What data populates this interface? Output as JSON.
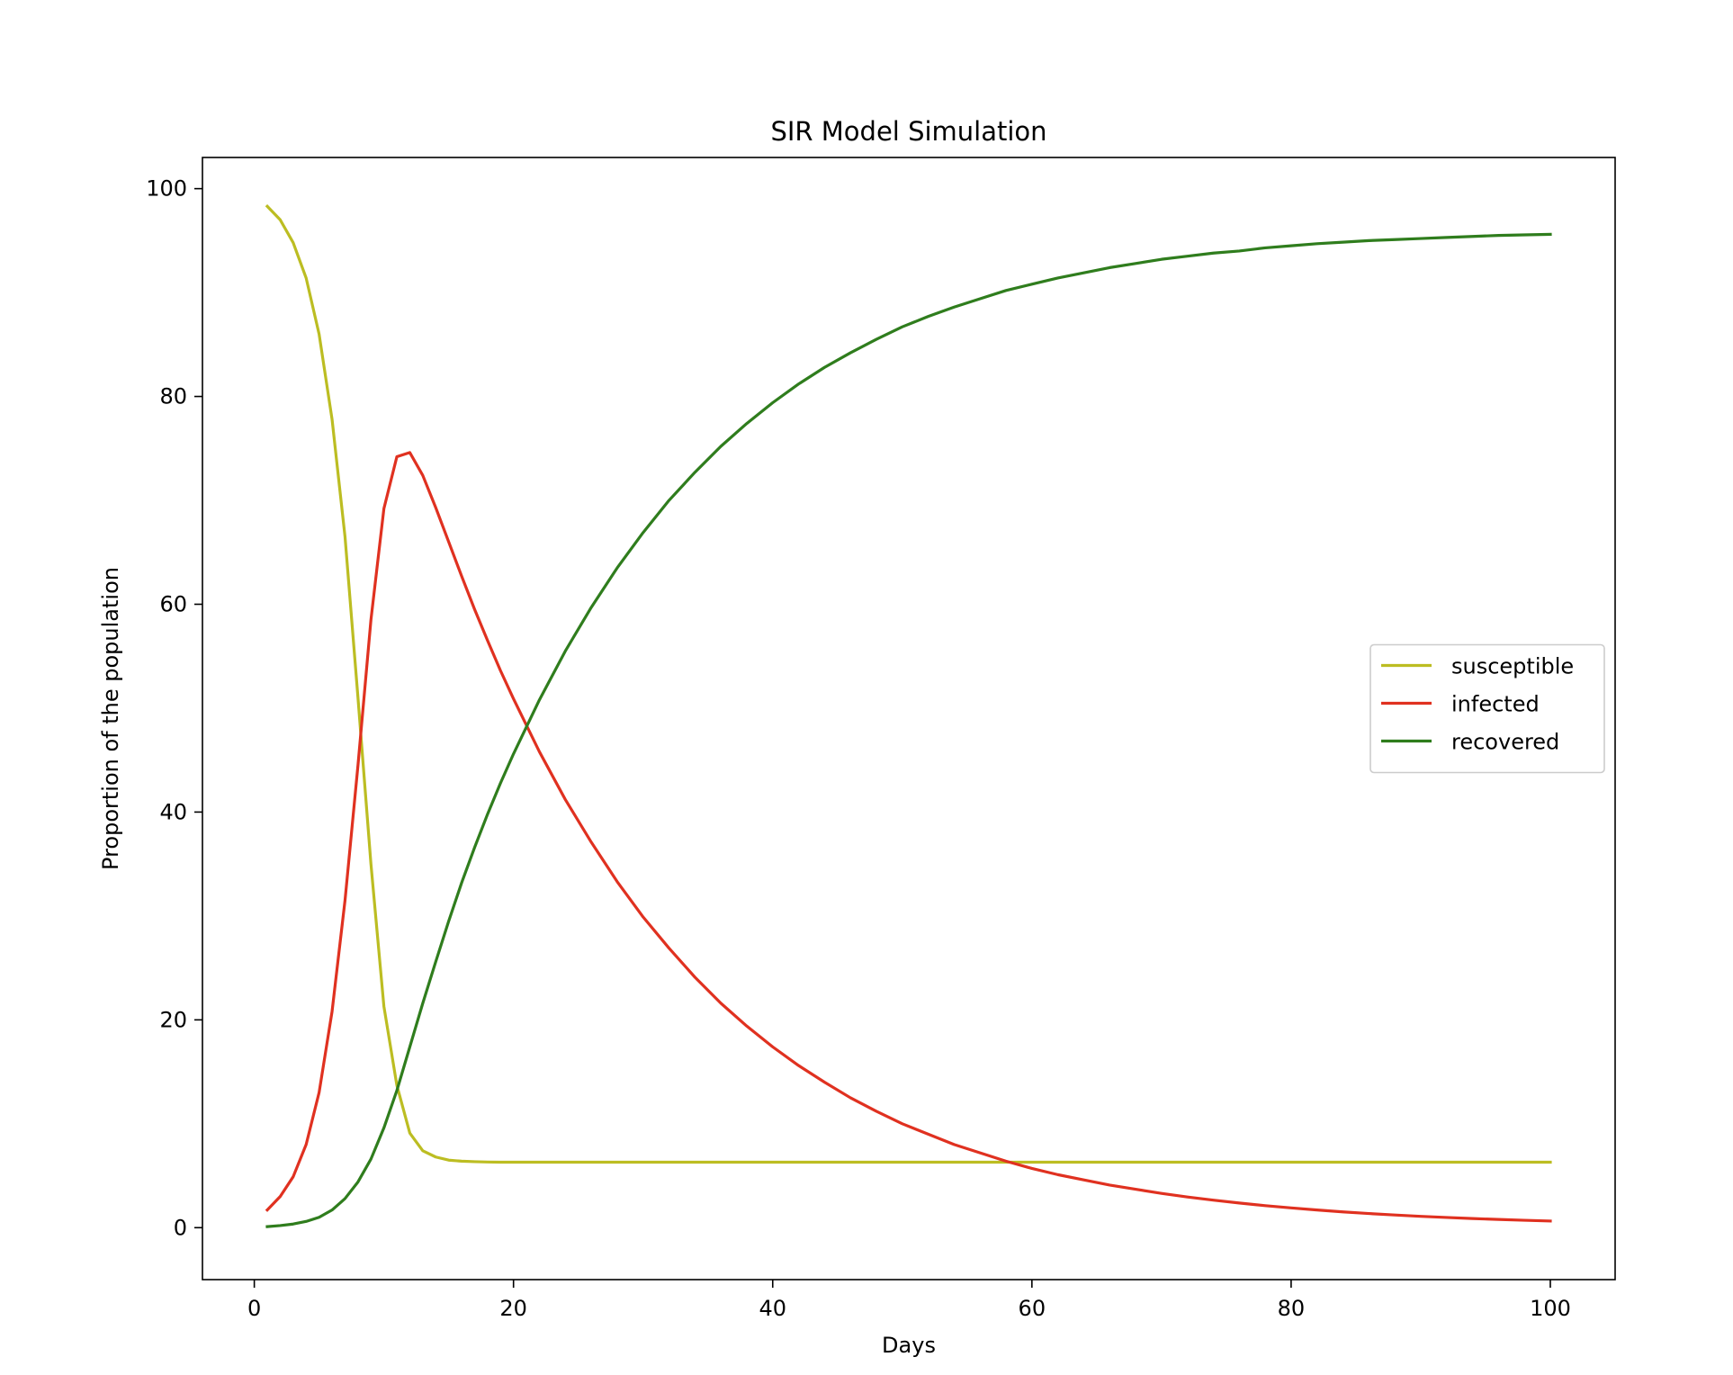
{
  "chart_data": {
    "type": "line",
    "title": "SIR Model Simulation",
    "xlabel": "Days",
    "ylabel": "Proportion of the population",
    "xlim": [
      -4,
      105
    ],
    "ylim": [
      -5,
      103
    ],
    "xticks": [
      0,
      20,
      40,
      60,
      80,
      100
    ],
    "yticks": [
      0,
      20,
      40,
      60,
      80,
      100
    ],
    "grid": false,
    "legend_position": "center-right",
    "series": [
      {
        "name": "susceptible",
        "color": "#bcbd22",
        "x": [
          1,
          2,
          3,
          4,
          5,
          6,
          7,
          8,
          9,
          10,
          11,
          12,
          13,
          14,
          15,
          16,
          17,
          18,
          19,
          20,
          25,
          30,
          40,
          50,
          60,
          70,
          80,
          90,
          100
        ],
        "y": [
          98.3,
          97.0,
          94.8,
          91.4,
          86.0,
          77.8,
          66.5,
          51.0,
          35.0,
          21.3,
          13.7,
          9.1,
          7.4,
          6.8,
          6.5,
          6.4,
          6.35,
          6.32,
          6.3,
          6.3,
          6.3,
          6.3,
          6.3,
          6.3,
          6.3,
          6.3,
          6.3,
          6.3,
          6.3
        ]
      },
      {
        "name": "infected",
        "color": "#e03120",
        "x": [
          1,
          2,
          3,
          4,
          5,
          6,
          7,
          8,
          9,
          10,
          11,
          12,
          13,
          14,
          15,
          16,
          17,
          18,
          19,
          20,
          22,
          24,
          26,
          28,
          30,
          32,
          34,
          36,
          38,
          40,
          42,
          44,
          46,
          48,
          50,
          52,
          54,
          56,
          58,
          60,
          62,
          64,
          66,
          68,
          70,
          72,
          74,
          76,
          78,
          80,
          82,
          84,
          86,
          88,
          90,
          92,
          94,
          96,
          98,
          100
        ],
        "y": [
          1.7,
          3.0,
          4.9,
          8.0,
          13.0,
          20.8,
          31.5,
          44.5,
          58.5,
          69.2,
          74.2,
          74.6,
          72.4,
          69.3,
          66.0,
          62.7,
          59.5,
          56.5,
          53.6,
          50.9,
          45.8,
          41.2,
          37.1,
          33.3,
          29.9,
          26.9,
          24.1,
          21.6,
          19.4,
          17.4,
          15.6,
          14.0,
          12.5,
          11.2,
          10.0,
          9.0,
          8.0,
          7.2,
          6.4,
          5.7,
          5.1,
          4.6,
          4.1,
          3.7,
          3.3,
          2.95,
          2.65,
          2.37,
          2.12,
          1.9,
          1.7,
          1.52,
          1.36,
          1.22,
          1.09,
          0.98,
          0.88,
          0.79,
          0.71,
          0.64
        ]
      },
      {
        "name": "recovered",
        "color": "#2f7d1d",
        "x": [
          1,
          2,
          3,
          4,
          5,
          6,
          7,
          8,
          9,
          10,
          11,
          12,
          13,
          14,
          15,
          16,
          17,
          18,
          19,
          20,
          22,
          24,
          26,
          28,
          30,
          32,
          34,
          36,
          38,
          40,
          42,
          44,
          46,
          48,
          50,
          52,
          54,
          56,
          58,
          60,
          62,
          64,
          66,
          68,
          70,
          72,
          74,
          76,
          78,
          80,
          82,
          84,
          86,
          88,
          90,
          92,
          94,
          96,
          98,
          100
        ],
        "y": [
          0.1,
          0.2,
          0.35,
          0.6,
          1.0,
          1.7,
          2.8,
          4.4,
          6.6,
          9.6,
          13.2,
          17.4,
          21.6,
          25.6,
          29.5,
          33.2,
          36.6,
          39.8,
          42.8,
          45.6,
          50.8,
          55.5,
          59.7,
          63.5,
          66.9,
          70.0,
          72.7,
          75.2,
          77.4,
          79.4,
          81.2,
          82.8,
          84.2,
          85.5,
          86.7,
          87.7,
          88.6,
          89.4,
          90.2,
          90.8,
          91.4,
          91.9,
          92.4,
          92.8,
          93.2,
          93.5,
          93.8,
          94.0,
          94.3,
          94.5,
          94.7,
          94.85,
          95.0,
          95.1,
          95.2,
          95.3,
          95.4,
          95.5,
          95.55,
          95.6
        ]
      }
    ]
  }
}
